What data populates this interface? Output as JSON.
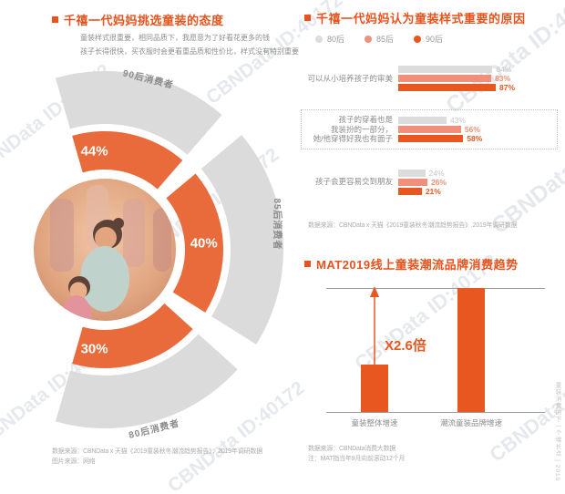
{
  "watermark": {
    "text": "CBNData ID:40172"
  },
  "attitude_section": {
    "title": "千禧一代妈妈挑选童装的态度",
    "bullets": [
      {
        "text": "童装样式很重要，相同品质下，我愿意为了好看花更多的钱",
        "color": "#E8571F"
      },
      {
        "text": "孩子长得很快，买衣服时会更看重品质和性价比，样式没有特别重要",
        "color": "#C9C9C9"
      }
    ],
    "source_line1": "数据来源：CBNData x 天猫《2019童装秋冬潮流趋势报告》；2019年调研数据",
    "source_line2": "图片来源：网络"
  },
  "reasons_section": {
    "title": "千禧一代妈妈认为童装样式重要的原因",
    "source": "数据来源：CBNData x 天猫《2019童装秋冬潮流趋势报告》,2019年调研数据"
  },
  "trend_section": {
    "title": "MAT2019线上童装潮流品牌消费趋势",
    "source": "数据来源：CBNData消费大数据",
    "note": "注：MAT指当年9月向前滚动12个月"
  },
  "side_caption": "童装消费的下一个增长点 | 2019",
  "chart_data": [
    {
      "id": "attitude-donut",
      "type": "pie",
      "title": "千禧一代妈妈挑选童装的态度",
      "categories": [
        "90后消费者",
        "85后消费者",
        "80后消费者"
      ],
      "values": [
        44,
        40,
        30
      ],
      "unit": "%",
      "colors": {
        "inner_ring": "#E96B3B",
        "outer_ring": "#DBDBDB",
        "value_text": "#FFFFFF"
      }
    },
    {
      "id": "style-importance-reasons",
      "type": "bar",
      "orientation": "horizontal",
      "title": "千禧一代妈妈认为童装样式重要的原因",
      "category_lines": [
        [
          "可以从小培养孩子的审美"
        ],
        [
          "孩子的穿着也是",
          "我装扮的一部分，",
          "她/他穿得好我也有面子"
        ],
        [
          "孩子会更容易交到朋友"
        ]
      ],
      "series": [
        {
          "name": "80后",
          "color": "#DCDCDC",
          "values": [
            84,
            43,
            24
          ]
        },
        {
          "name": "85后",
          "color": "#F0907A",
          "values": [
            83,
            56,
            26
          ]
        },
        {
          "name": "90后",
          "color": "#E8571F",
          "values": [
            87,
            58,
            21
          ]
        }
      ],
      "unit": "%",
      "xlim": [
        0,
        100
      ],
      "highlighted_group": 1,
      "legend_position": "top"
    },
    {
      "id": "mat2019-trend",
      "type": "bar",
      "title": "MAT2019线上童装潮流品牌消费趋势",
      "categories": [
        "童装整体增速",
        "潮流童装品牌增速"
      ],
      "relative_values": [
        1,
        2.6
      ],
      "annotation": "X2.6倍",
      "color": "#E8571F"
    }
  ]
}
